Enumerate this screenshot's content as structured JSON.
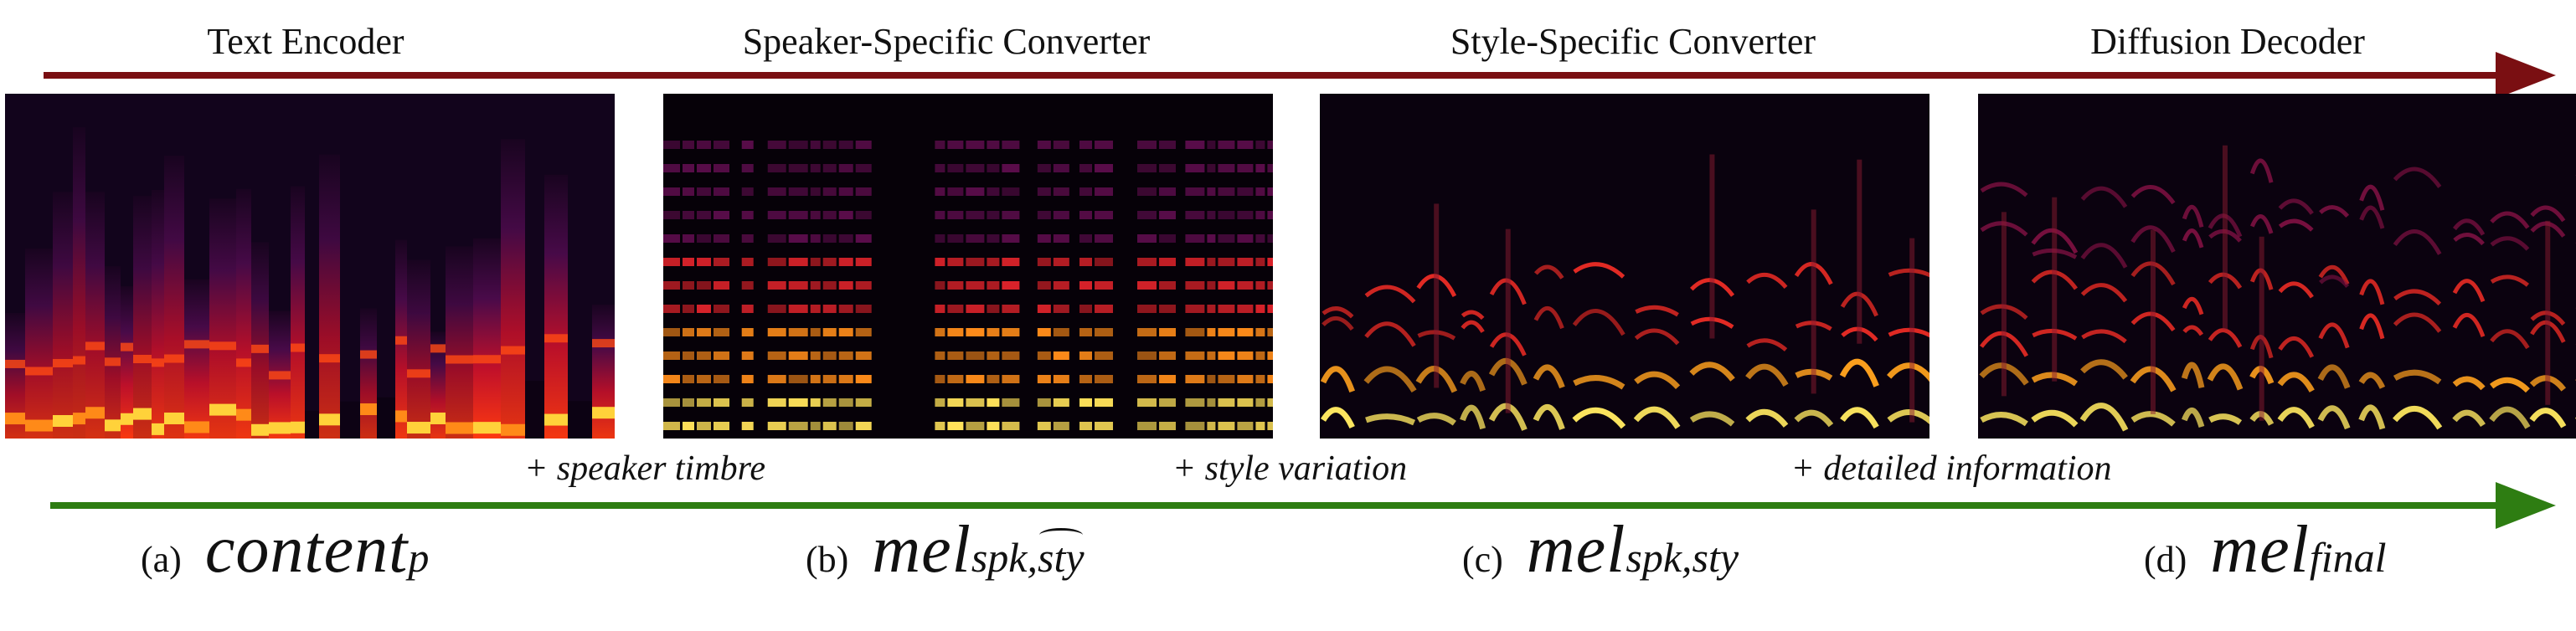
{
  "stages": [
    {
      "label": "Text Encoder"
    },
    {
      "label": "Speaker-Specific Converter"
    },
    {
      "label": "Style-Specific Converter"
    },
    {
      "label": "Diffusion Decoder"
    }
  ],
  "additions": [
    {
      "label": "+ speaker timbre"
    },
    {
      "label": "+ style variation"
    },
    {
      "label": "+ detailed information"
    }
  ],
  "captions": [
    {
      "tag": "(a)",
      "symbol": "content",
      "subscript": "p",
      "sub_tilde": "",
      "sub_tail": ""
    },
    {
      "tag": "(b)",
      "symbol": "mel",
      "subscript": "spk,",
      "sub_tilde": "sty",
      "sub_tail": ""
    },
    {
      "tag": "(c)",
      "symbol": "mel",
      "subscript": "spk,sty",
      "sub_tilde": "",
      "sub_tail": ""
    },
    {
      "tag": "(d)",
      "symbol": "mel",
      "subscript": "final",
      "sub_tilde": "",
      "sub_tail": ""
    }
  ],
  "colors": {
    "top_arrow": "#7a0f12",
    "bottom_arrow": "#2e7d12"
  }
}
